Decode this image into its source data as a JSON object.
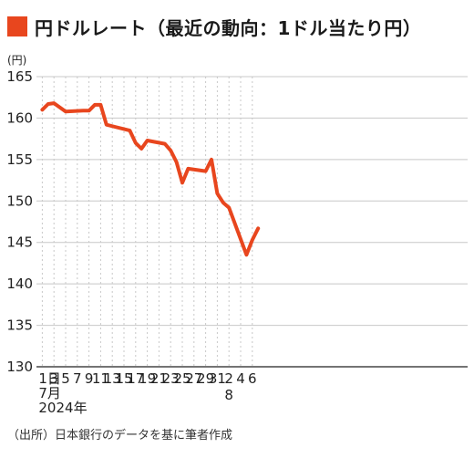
{
  "header": {
    "title": "円ドルレート（最近の動向：1ドル当たり円）"
  },
  "footer": {
    "source": "（出所）日本銀行のデータを基に筆者作成"
  },
  "colors": {
    "accent": "#e8461e",
    "grid": "#c8c8c8",
    "axis": "#222222"
  },
  "chart_data": {
    "type": "line",
    "title": "円ドルレート（最近の動向：1ドル当たり円）",
    "ylabel": "(円)",
    "ylim": [
      130,
      165
    ],
    "yticks": [
      130,
      135,
      140,
      145,
      150,
      155,
      160,
      165
    ],
    "x_start_label": [
      "1日",
      "7月",
      "2024年"
    ],
    "xtick_labels": [
      "3",
      "5",
      "7",
      "9",
      "11",
      "13",
      "15",
      "17",
      "19",
      "21",
      "23",
      "25",
      "27",
      "29",
      "31",
      "2",
      "4",
      "6"
    ],
    "month_label": "8",
    "x": [
      "7/1",
      "7/2",
      "7/3",
      "7/5",
      "7/8",
      "7/9",
      "7/10",
      "7/11",
      "7/12",
      "7/16",
      "7/17",
      "7/18",
      "7/19",
      "7/22",
      "7/23",
      "7/24",
      "7/25",
      "7/26",
      "7/29",
      "7/30",
      "7/31",
      "8/1",
      "8/2",
      "8/5",
      "8/6",
      "8/7"
    ],
    "series": [
      {
        "values": [
          161.0,
          161.7,
          161.8,
          160.8,
          160.9,
          160.9,
          161.6,
          161.6,
          159.2,
          158.5,
          157.0,
          156.3,
          157.3,
          156.9,
          156.1,
          154.7,
          152.2,
          153.9,
          153.6,
          155.0,
          150.9,
          149.8,
          149.2,
          143.5,
          145.3,
          146.7
        ]
      }
    ]
  }
}
